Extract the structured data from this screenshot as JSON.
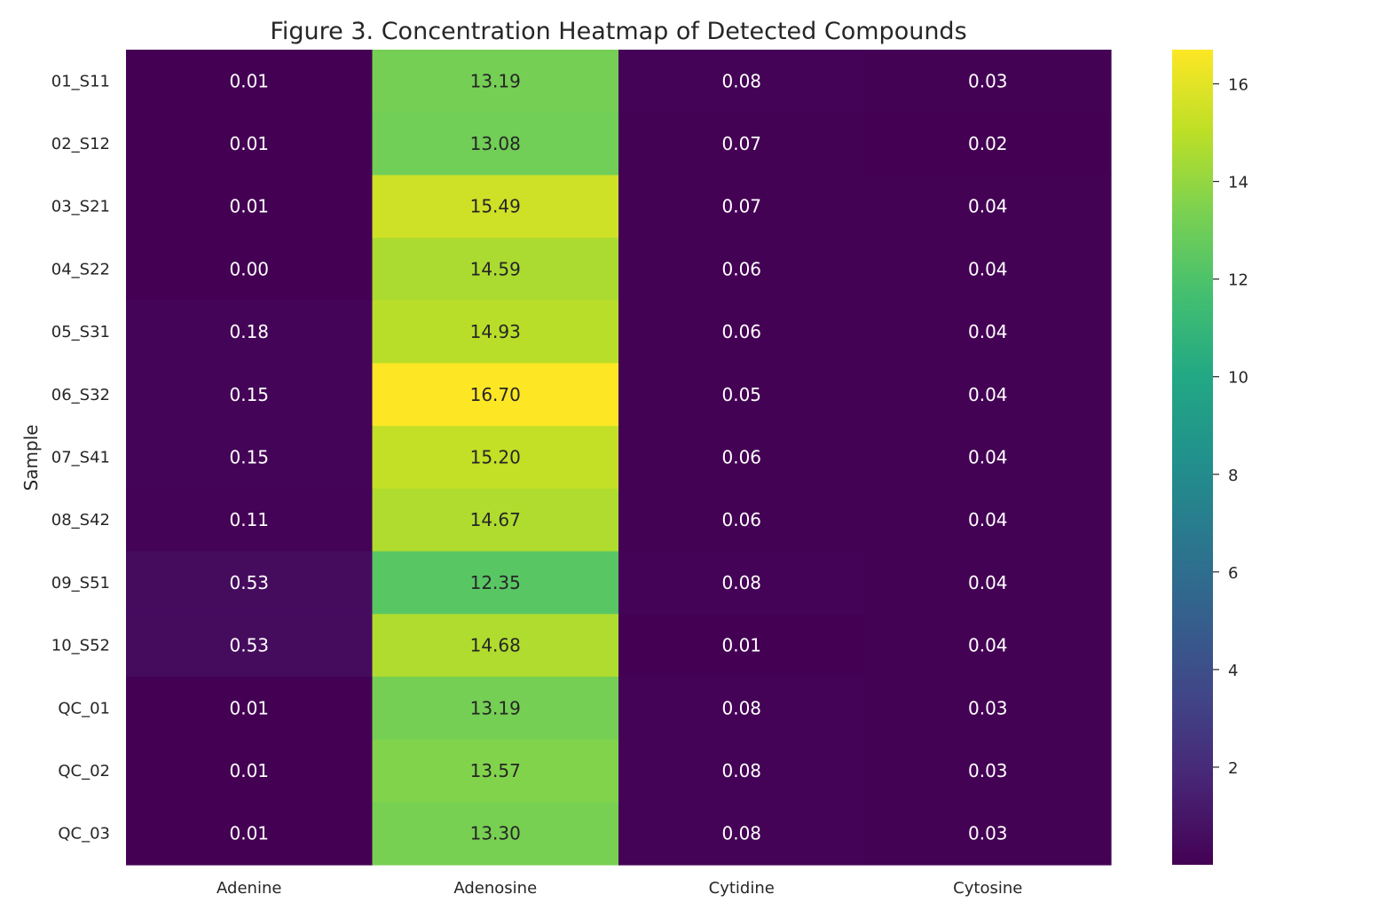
{
  "chart_data": {
    "type": "heatmap",
    "title": "Figure 3. Concentration Heatmap of Detected Compounds",
    "ylabel": "Sample",
    "xlabel": "",
    "columns": [
      "Adenine",
      "Adenosine",
      "Cytidine",
      "Cytosine"
    ],
    "rows": [
      "01_S11",
      "02_S12",
      "03_S21",
      "04_S22",
      "05_S31",
      "06_S32",
      "07_S41",
      "08_S42",
      "09_S51",
      "10_S52",
      "QC_01",
      "QC_02",
      "QC_03"
    ],
    "values": [
      [
        0.01,
        13.19,
        0.08,
        0.03
      ],
      [
        0.01,
        13.08,
        0.07,
        0.02
      ],
      [
        0.01,
        15.49,
        0.07,
        0.04
      ],
      [
        0.0,
        14.59,
        0.06,
        0.04
      ],
      [
        0.18,
        14.93,
        0.06,
        0.04
      ],
      [
        0.15,
        16.7,
        0.05,
        0.04
      ],
      [
        0.15,
        15.2,
        0.06,
        0.04
      ],
      [
        0.11,
        14.67,
        0.06,
        0.04
      ],
      [
        0.53,
        12.35,
        0.08,
        0.04
      ],
      [
        0.53,
        14.68,
        0.01,
        0.04
      ],
      [
        0.01,
        13.19,
        0.08,
        0.03
      ],
      [
        0.01,
        13.57,
        0.08,
        0.03
      ],
      [
        0.01,
        13.3,
        0.08,
        0.03
      ]
    ],
    "colormap": "viridis",
    "color_range": [
      0.0,
      16.7
    ],
    "colorbar_ticks": [
      2,
      4,
      6,
      8,
      10,
      12,
      14,
      16
    ],
    "grid": false,
    "legend": "colorbar-right"
  }
}
